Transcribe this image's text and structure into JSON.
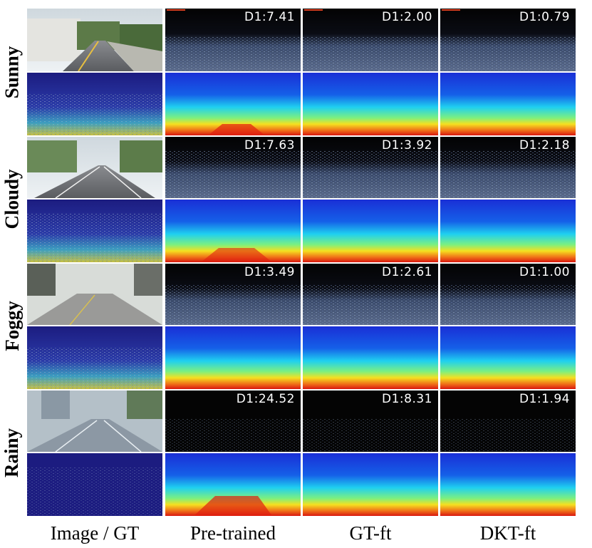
{
  "rows": [
    {
      "label": "Sunny",
      "metrics": [
        "D1:7.41",
        "D1:2.00",
        "D1:0.79"
      ]
    },
    {
      "label": "Cloudy",
      "metrics": [
        "D1:7.63",
        "D1:3.92",
        "D1:2.18"
      ]
    },
    {
      "label": "Foggy",
      "metrics": [
        "D1:3.49",
        "D1:2.61",
        "D1:1.00"
      ]
    },
    {
      "label": "Rainy",
      "metrics": [
        "D1:24.52",
        "D1:8.31",
        "D1:1.94"
      ]
    }
  ],
  "columns": [
    "Image / GT",
    "Pre-trained",
    "GT-ft",
    "DKT-ft"
  ],
  "colors": {
    "error_bg": "#050505",
    "disparity_far": "#1a2fd6",
    "disparity_mid": "#1fd0f0",
    "disparity_near": "#f5e020",
    "disparity_close": "#e02010",
    "gt_bg": "#20208c"
  }
}
